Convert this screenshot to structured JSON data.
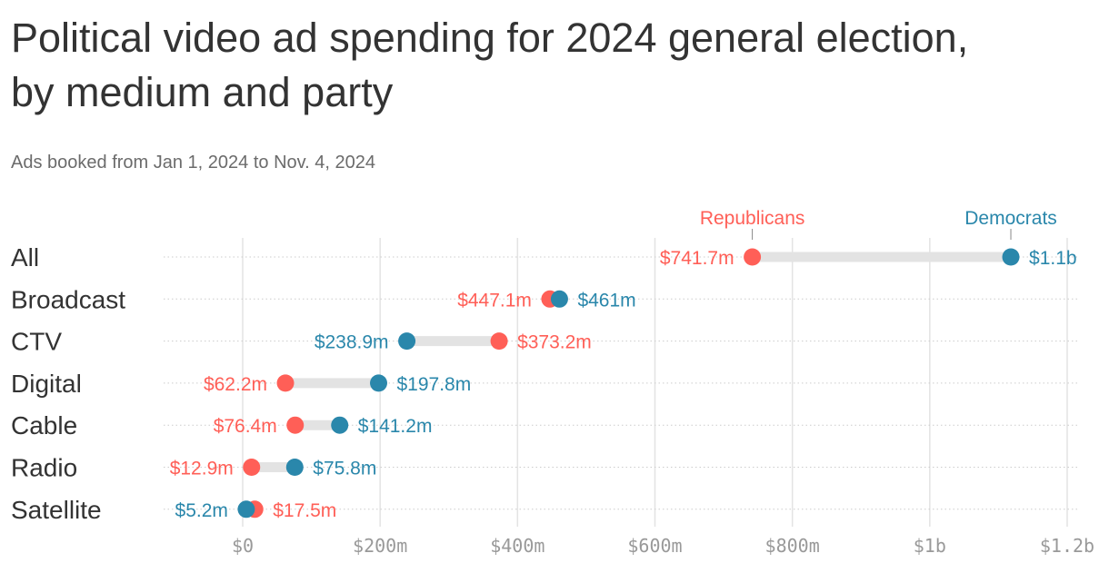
{
  "title": "Political video ad spending for 2024 general election, by medium and party",
  "subtitle": "Ads booked from Jan 1, 2024 to Nov. 4, 2024",
  "chart_data": {
    "type": "dumbbell",
    "title": "Political video ad spending for 2024 general election, by medium and party",
    "subtitle": "Ads booked from Jan 1, 2024 to Nov. 4, 2024",
    "unit": "USD millions",
    "xlim": [
      0,
      1200
    ],
    "grid": true,
    "x_ticks": [
      {
        "value": 0,
        "label": "$0"
      },
      {
        "value": 200,
        "label": "$200m"
      },
      {
        "value": 400,
        "label": "$400m"
      },
      {
        "value": 600,
        "label": "$600m"
      },
      {
        "value": 800,
        "label": "$800m"
      },
      {
        "value": 1000,
        "label": "$1b"
      },
      {
        "value": 1200,
        "label": "$1.2b"
      }
    ],
    "categories": [
      "All",
      "Broadcast",
      "CTV",
      "Digital",
      "Cable",
      "Radio",
      "Satellite"
    ],
    "series": [
      {
        "name": "Republicans",
        "color": "#ff5f57",
        "values": [
          741.7,
          447.1,
          373.2,
          62.2,
          76.4,
          12.9,
          17.5
        ],
        "labels": [
          "$741.7m",
          "$447.1m",
          "$373.2m",
          "$62.2m",
          "$76.4m",
          "$12.9m",
          "$17.5m"
        ]
      },
      {
        "name": "Democrats",
        "color": "#2a87ab",
        "values": [
          1118,
          461,
          238.9,
          197.8,
          141.2,
          75.8,
          5.2
        ],
        "labels": [
          "$1.1b",
          "$461m",
          "$238.9m",
          "$197.8m",
          "$141.2m",
          "$75.8m",
          "$5.2m"
        ]
      }
    ]
  }
}
